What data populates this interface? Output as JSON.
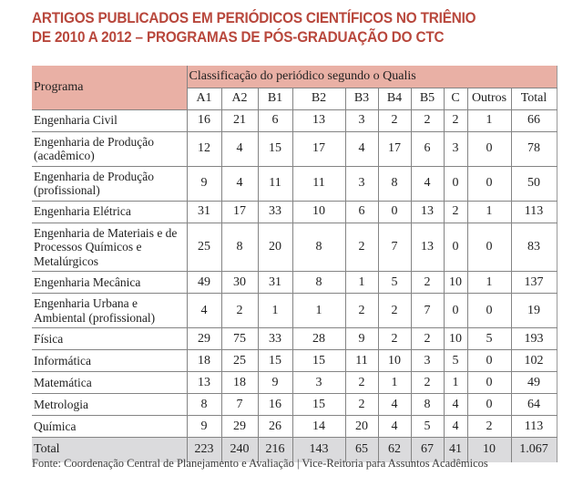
{
  "title": {
    "line1": "ARTIGOS PUBLICADOS EM PERIÓDICOS CIENTÍFICOS NO TRIÊNIO",
    "line2": "DE 2010 A 2012 – PROGRAMAS DE PÓS-GRADUAÇÃO DO CTC"
  },
  "table": {
    "program_header": "Programa",
    "group_header": "Classificação do periódico segundo o Qualis",
    "columns": [
      "A1",
      "A2",
      "B1",
      "B2",
      "B3",
      "B4",
      "B5",
      "C",
      "Outros",
      "Total"
    ],
    "rows": [
      {
        "program": "Engenharia Civil",
        "values": [
          "16",
          "21",
          "6",
          "13",
          "3",
          "2",
          "2",
          "2",
          "1",
          "66"
        ]
      },
      {
        "program": "Engenharia de Produção (acadêmico)",
        "values": [
          "12",
          "4",
          "15",
          "17",
          "4",
          "17",
          "6",
          "3",
          "0",
          "78"
        ]
      },
      {
        "program": "Engenharia de Produção (profissional)",
        "values": [
          "9",
          "4",
          "11",
          "11",
          "3",
          "8",
          "4",
          "0",
          "0",
          "50"
        ]
      },
      {
        "program": "Engenharia Elétrica",
        "values": [
          "31",
          "17",
          "33",
          "10",
          "6",
          "0",
          "13",
          "2",
          "1",
          "113"
        ]
      },
      {
        "program": "Engenharia de Materiais e de Processos Químicos e Metalúrgicos",
        "values": [
          "25",
          "8",
          "20",
          "8",
          "2",
          "7",
          "13",
          "0",
          "0",
          "83"
        ]
      },
      {
        "program": "Engenharia Mecânica",
        "values": [
          "49",
          "30",
          "31",
          "8",
          "1",
          "5",
          "2",
          "10",
          "1",
          "137"
        ]
      },
      {
        "program": "Engenharia Urbana e Ambiental (profissional)",
        "values": [
          "4",
          "2",
          "1",
          "1",
          "2",
          "2",
          "7",
          "0",
          "0",
          "19"
        ]
      },
      {
        "program": "Física",
        "values": [
          "29",
          "75",
          "33",
          "28",
          "9",
          "2",
          "2",
          "10",
          "5",
          "193"
        ]
      },
      {
        "program": "Informática",
        "values": [
          "18",
          "25",
          "15",
          "15",
          "11",
          "10",
          "3",
          "5",
          "0",
          "102"
        ]
      },
      {
        "program": "Matemática",
        "values": [
          "13",
          "18",
          "9",
          "3",
          "2",
          "1",
          "2",
          "1",
          "0",
          "49"
        ]
      },
      {
        "program": "Metrologia",
        "values": [
          "8",
          "7",
          "16",
          "15",
          "2",
          "4",
          "8",
          "4",
          "0",
          "64"
        ]
      },
      {
        "program": "Química",
        "values": [
          "9",
          "29",
          "26",
          "14",
          "20",
          "4",
          "5",
          "4",
          "2",
          "113"
        ]
      }
    ],
    "total": {
      "label": "Total",
      "values": [
        "223",
        "240",
        "216",
        "143",
        "65",
        "62",
        "67",
        "41",
        "10",
        "1.067"
      ]
    }
  },
  "footer": {
    "source": "Fonte: Coordenação Central de Planejamento e Avaliação | Vice-Reitoria para Assuntos Acadêmicos"
  },
  "colors": {
    "accent_red": "#b8473c",
    "header_pink": "#e9b0a5",
    "total_row_gray": "#dbdbdd",
    "border_gray": "#848484"
  }
}
